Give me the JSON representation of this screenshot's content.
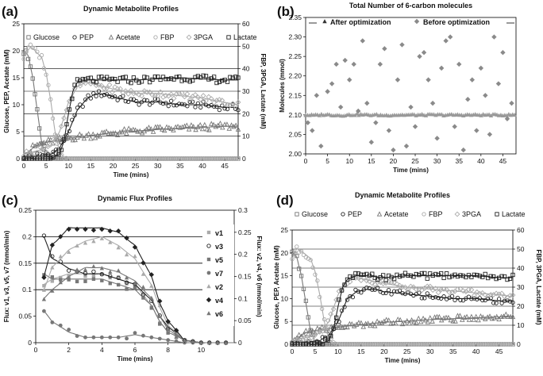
{
  "panels": [
    {
      "letter": "(a)",
      "title": "Dynamic Metabolite Profiles",
      "xlabel": "Time (mins)",
      "ylabel_left": "Glucose, PEP, Acetate (mM)",
      "ylabel_right": "FBP, 3PGA, Lactate (mM)"
    },
    {
      "letter": "(b)",
      "title": "Total Number of 6-carbon molecules",
      "xlabel": "Time (mins)",
      "ylabel_left": "Molecules (mmol)"
    },
    {
      "letter": "(c)",
      "title": "Dynamic Flux Profiles",
      "xlabel": "Time (mins)",
      "ylabel_left": "Flux: v1, v3, v5, v7 (mmol/min)",
      "ylabel_right": "Flux: v2, v4, v6 (mmol/min)"
    },
    {
      "letter": "(d)",
      "title": "Dynamic Metabolite Profiles",
      "xlabel": "Time (mins)",
      "ylabel_left": "Glucose, PEP, Acetate (mM)",
      "ylabel_right": "FBP, 3PGA, Lactate (mM)"
    }
  ],
  "colors": {
    "dark": "#222222",
    "mid": "#777777",
    "light": "#aaaaaa",
    "grid": "#000000",
    "before": "#8a8a8a",
    "after": "#999999"
  },
  "chart_data": [
    {
      "type": "scatter",
      "xlim": [
        0,
        48
      ],
      "xticks": [
        0,
        5,
        10,
        15,
        20,
        25,
        30,
        35,
        40,
        45
      ],
      "ylim_left": [
        0,
        25
      ],
      "yticks_left": [
        0,
        5,
        10,
        15,
        20,
        25
      ],
      "ylim_right": [
        0,
        60
      ],
      "yticks_right": [
        0,
        10,
        20,
        30,
        40,
        50,
        60
      ],
      "grid": true,
      "legend": "top",
      "legend_entries": [
        "Glucose",
        "PEP",
        "Acetate",
        "FBP",
        "3PGA",
        "Lactate"
      ],
      "series": [
        {
          "name": "Glucose",
          "axis": "left",
          "x": [
            0,
            1,
            2,
            3,
            4,
            5,
            6,
            7,
            8,
            9,
            10,
            15,
            20,
            30,
            40,
            48
          ],
          "values": [
            20,
            19,
            15,
            9,
            3,
            0.5,
            0.2,
            0,
            0,
            0,
            0,
            0,
            0,
            0,
            0,
            0
          ]
        },
        {
          "name": "PEP",
          "axis": "left",
          "x": [
            0,
            2,
            4,
            6,
            8,
            10,
            12,
            14,
            16,
            18,
            20,
            25,
            30,
            35,
            40,
            45,
            48
          ],
          "values": [
            0.5,
            0.5,
            0.6,
            0.8,
            2,
            5,
            9,
            11,
            12,
            12,
            11.5,
            10.5,
            10.5,
            10,
            10,
            9.5,
            9.5
          ]
        },
        {
          "name": "Acetate",
          "axis": "left",
          "x": [
            0,
            1,
            2,
            3,
            5,
            8,
            10,
            15,
            20,
            25,
            30,
            35,
            40,
            45,
            48
          ],
          "values": [
            0,
            1,
            2,
            2.5,
            3,
            3.4,
            3.8,
            4.3,
            4.8,
            5.1,
            5.4,
            5.6,
            5.8,
            6,
            6
          ]
        },
        {
          "name": "FBP",
          "axis": "right",
          "x": [
            0,
            1,
            2,
            3,
            4,
            5,
            6,
            7,
            8,
            9,
            10,
            15,
            20,
            30,
            40,
            48
          ],
          "values": [
            45,
            50,
            49,
            47,
            45,
            38,
            26,
            12,
            3,
            0.5,
            0,
            0,
            0,
            0,
            0,
            0
          ]
        },
        {
          "name": "3PGA",
          "axis": "right",
          "x": [
            0,
            2,
            4,
            6,
            8,
            10,
            12,
            14,
            16,
            18,
            20,
            25,
            30,
            35,
            40,
            45,
            48
          ],
          "values": [
            2,
            3,
            4,
            6,
            12,
            25,
            32,
            34,
            33,
            32,
            31,
            29,
            29,
            28,
            27,
            25,
            24
          ]
        },
        {
          "name": "Lactate",
          "axis": "right",
          "x": [
            0,
            2,
            4,
            6,
            8,
            9,
            10,
            11,
            12,
            14,
            16,
            20,
            25,
            30,
            35,
            40,
            45,
            48
          ],
          "values": [
            0,
            0,
            0,
            0,
            2,
            8,
            20,
            30,
            34,
            35,
            35,
            35,
            35,
            35.5,
            36,
            35.5,
            35,
            35
          ]
        }
      ]
    },
    {
      "type": "scatter",
      "xlim": [
        0,
        48
      ],
      "xticks": [
        0,
        5,
        10,
        15,
        20,
        25,
        30,
        35,
        40,
        45
      ],
      "ylim": [
        2.0,
        2.35
      ],
      "yticks": [
        2.0,
        2.05,
        2.1,
        2.15,
        2.2,
        2.25,
        2.3,
        2.35
      ],
      "legend": "top",
      "legend_entries": [
        "After optimization",
        "Before optimization"
      ],
      "series": [
        {
          "name": "After optimization",
          "x": [
            0,
            2,
            4,
            6,
            8,
            10,
            12,
            14,
            16,
            18,
            20,
            22,
            24,
            26,
            28,
            30,
            32,
            34,
            36,
            38,
            40,
            42,
            44,
            46,
            48
          ],
          "values": [
            2.1,
            2.099,
            2.101,
            2.1,
            2.099,
            2.1,
            2.101,
            2.1,
            2.1,
            2.099,
            2.1,
            2.1,
            2.1,
            2.1,
            2.1,
            2.1,
            2.1,
            2.1,
            2.1,
            2.1,
            2.1,
            2.1,
            2.1,
            2.1,
            2.1
          ]
        },
        {
          "name": "Before optimization",
          "x": [
            0.5,
            1.5,
            2.5,
            3.5,
            5,
            6,
            7,
            8,
            9,
            10,
            11,
            12,
            13,
            14,
            15,
            16,
            17,
            18,
            19,
            20,
            21,
            22,
            23,
            24,
            25,
            26,
            27,
            28,
            29,
            30,
            31,
            32,
            33,
            34,
            35,
            36,
            37,
            38,
            39,
            40,
            41,
            42,
            43,
            44,
            45,
            46,
            47
          ],
          "values": [
            2.08,
            2.06,
            2.15,
            2.02,
            2.16,
            2.18,
            2.23,
            2.12,
            2.24,
            2.19,
            2.23,
            2.11,
            2.29,
            2.13,
            2.03,
            2.08,
            2.23,
            2.27,
            2.06,
            2.01,
            2.19,
            2.28,
            2.02,
            2.12,
            2.07,
            2.25,
            2.26,
            2.19,
            2.13,
            2.04,
            2.22,
            2.29,
            2.3,
            2.07,
            2.23,
            2.01,
            2.14,
            2.19,
            2.06,
            2.22,
            2.15,
            2.05,
            2.3,
            2.18,
            2.26,
            2.09,
            2.13
          ]
        }
      ]
    },
    {
      "type": "scatter",
      "xlim": [
        0,
        12
      ],
      "xticks": [
        0,
        2,
        4,
        6,
        8,
        10
      ],
      "ylim_left": [
        0,
        0.25
      ],
      "yticks_left": [
        0,
        0.05,
        0.1,
        0.15,
        0.2,
        0.25
      ],
      "ylim_right": [
        0,
        0.3
      ],
      "yticks_right": [
        0,
        0.05,
        0.1,
        0.15,
        0.2,
        0.25,
        0.3
      ],
      "legend": "right",
      "legend_entries": [
        "v1",
        "v3",
        "v5",
        "v7",
        "v2",
        "v4",
        "v6"
      ],
      "series": [
        {
          "name": "v1",
          "axis": "left",
          "x": [
            0.5,
            1,
            2,
            3,
            4,
            5,
            6,
            7,
            7.5,
            8,
            9,
            10,
            11
          ],
          "values": [
            0.11,
            0.12,
            0.13,
            0.13,
            0.13,
            0.12,
            0.11,
            0.07,
            0.04,
            0.02,
            0.005,
            0,
            0
          ]
        },
        {
          "name": "v3",
          "axis": "left",
          "x": [
            0.5,
            1,
            2,
            3,
            4,
            5,
            6,
            7,
            7.5,
            8,
            9,
            10,
            11
          ],
          "values": [
            0.2,
            0.16,
            0.14,
            0.13,
            0.13,
            0.12,
            0.11,
            0.08,
            0.05,
            0.03,
            0.005,
            0,
            0
          ]
        },
        {
          "name": "v5",
          "axis": "left",
          "x": [
            0.5,
            1,
            2,
            3,
            4,
            5,
            6,
            7,
            7.5,
            8,
            9,
            10,
            11
          ],
          "values": [
            0.13,
            0.12,
            0.12,
            0.12,
            0.12,
            0.11,
            0.1,
            0.07,
            0.04,
            0.02,
            0.005,
            0,
            0
          ]
        },
        {
          "name": "v7",
          "axis": "left",
          "x": [
            0.5,
            1,
            2,
            3,
            4,
            5,
            6,
            7,
            8,
            9,
            10,
            11
          ],
          "values": [
            0.06,
            0.04,
            0.02,
            0.01,
            0.01,
            0.01,
            0.015,
            0.01,
            0.005,
            0,
            0,
            0
          ]
        },
        {
          "name": "v2",
          "axis": "right",
          "x": [
            0.5,
            1,
            2,
            3,
            4,
            5,
            6,
            7,
            7.5,
            8,
            9,
            10,
            11
          ],
          "values": [
            0.12,
            0.17,
            0.21,
            0.23,
            0.24,
            0.22,
            0.19,
            0.13,
            0.08,
            0.04,
            0.005,
            0,
            0
          ]
        },
        {
          "name": "v4",
          "axis": "right",
          "x": [
            0.5,
            1,
            2,
            3,
            4,
            5,
            6,
            7,
            7.5,
            8,
            9,
            10,
            11
          ],
          "values": [
            0.15,
            0.22,
            0.26,
            0.26,
            0.26,
            0.25,
            0.22,
            0.15,
            0.09,
            0.05,
            0.005,
            0,
            0
          ]
        },
        {
          "name": "v6",
          "axis": "right",
          "x": [
            0.5,
            1,
            2,
            3,
            4,
            5,
            6,
            7,
            7.5,
            8,
            9,
            10,
            11
          ],
          "values": [
            0.1,
            0.12,
            0.15,
            0.17,
            0.17,
            0.16,
            0.14,
            0.1,
            0.06,
            0.03,
            0.005,
            0,
            0
          ]
        }
      ]
    },
    {
      "type": "scatter",
      "xlim": [
        0,
        48
      ],
      "xticks": [
        0,
        5,
        10,
        15,
        20,
        25,
        30,
        35,
        40,
        45
      ],
      "ylim_left": [
        0,
        25
      ],
      "yticks_left": [
        0,
        5,
        10,
        15,
        20,
        25
      ],
      "ylim_right": [
        0,
        60
      ],
      "yticks_right": [
        0,
        10,
        20,
        30,
        40,
        50,
        60
      ],
      "grid": true,
      "legend": "top",
      "legend_entries": [
        "Glucose",
        "PEP",
        "Acetate",
        "FBP",
        "3PGA",
        "Lactate"
      ],
      "series": [
        {
          "name": "Glucose",
          "axis": "left",
          "x": [
            0,
            1,
            2,
            3,
            4,
            5,
            6,
            7,
            8,
            9,
            10,
            15,
            20,
            30,
            40,
            48
          ],
          "values": [
            20,
            19,
            15,
            9,
            3,
            0.5,
            0.2,
            0,
            0,
            0,
            0,
            0,
            0,
            0,
            0,
            0
          ]
        },
        {
          "name": "PEP",
          "axis": "left",
          "x": [
            0,
            2,
            4,
            6,
            8,
            10,
            12,
            14,
            16,
            18,
            20,
            25,
            30,
            35,
            40,
            45,
            48
          ],
          "values": [
            0.5,
            0.5,
            0.6,
            0.8,
            2,
            5,
            10,
            11.5,
            12,
            12,
            11.5,
            11,
            10.5,
            10,
            10,
            9.5,
            9.5
          ]
        },
        {
          "name": "Acetate",
          "axis": "left",
          "x": [
            0,
            1,
            2,
            3,
            5,
            8,
            10,
            15,
            20,
            25,
            30,
            35,
            40,
            45,
            48
          ],
          "values": [
            0,
            1,
            2,
            2.5,
            3,
            3.4,
            3.8,
            4.3,
            4.8,
            5.1,
            5.4,
            5.6,
            5.8,
            6,
            6
          ]
        },
        {
          "name": "FBP",
          "axis": "right",
          "x": [
            0,
            1,
            2,
            3,
            4,
            5,
            6,
            7,
            8,
            9,
            10,
            15,
            20,
            30,
            40,
            48
          ],
          "values": [
            45,
            50,
            49,
            47,
            45,
            38,
            26,
            12,
            3,
            0.5,
            0,
            0,
            0,
            0,
            0,
            0
          ]
        },
        {
          "name": "3PGA",
          "axis": "right",
          "x": [
            0,
            2,
            4,
            6,
            8,
            10,
            12,
            14,
            16,
            18,
            20,
            25,
            30,
            35,
            40,
            45,
            48
          ],
          "values": [
            2,
            3,
            4,
            6,
            12,
            26,
            33,
            35,
            34,
            33,
            32,
            30,
            29,
            28,
            27,
            26,
            25
          ]
        },
        {
          "name": "Lactate",
          "axis": "right",
          "x": [
            0,
            2,
            4,
            6,
            8,
            9,
            10,
            11,
            12,
            14,
            16,
            20,
            25,
            30,
            35,
            40,
            45,
            48
          ],
          "values": [
            0,
            0,
            0,
            0,
            2,
            8,
            20,
            30,
            34,
            36,
            36,
            35,
            36,
            36,
            36,
            36,
            35,
            35
          ]
        }
      ]
    }
  ]
}
